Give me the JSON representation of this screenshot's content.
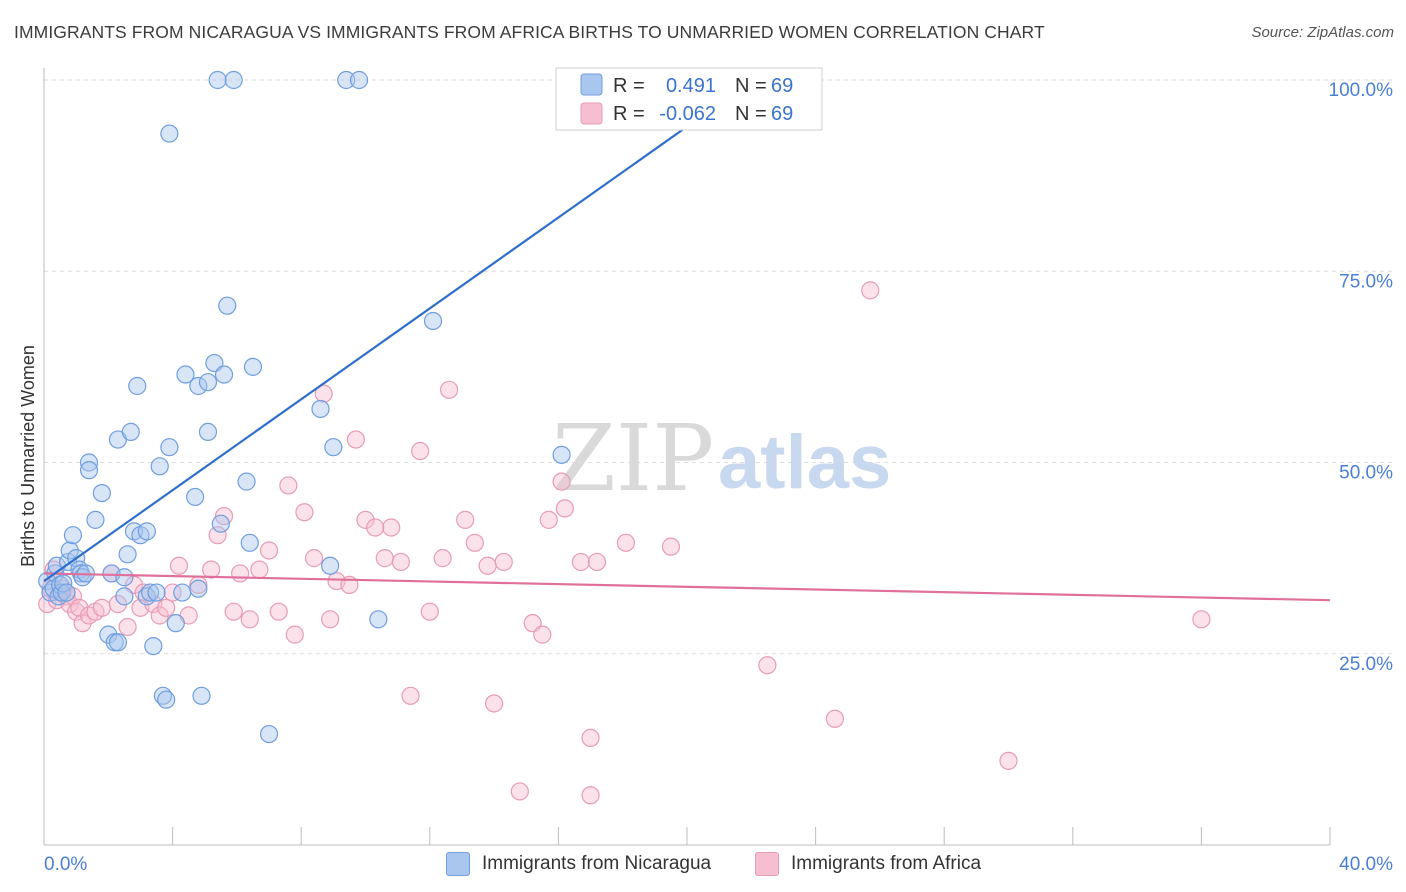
{
  "header": {
    "title": "IMMIGRANTS FROM NICARAGUA VS IMMIGRANTS FROM AFRICA BIRTHS TO UNMARRIED WOMEN CORRELATION CHART",
    "source": "Source: ZipAtlas.com"
  },
  "watermark": {
    "part1": "ZIP",
    "part2": "atlas"
  },
  "legend_box": {
    "rows": [
      {
        "r_label": "R =",
        "r_value": "0.491",
        "n_label": "N =",
        "n_value": "69"
      },
      {
        "r_label": "R =",
        "r_value": "-0.062",
        "n_label": "N =",
        "n_value": "69"
      }
    ]
  },
  "bottom_legend": {
    "item1": "Immigrants from Nicaragua",
    "item2": "Immigrants from Africa"
  },
  "chart_data": {
    "type": "scatter",
    "title": "IMMIGRANTS FROM NICARAGUA VS IMMIGRANTS FROM AFRICA BIRTHS TO UNMARRIED WOMEN CORRELATION CHART",
    "xlabel": "",
    "ylabel": "Births to Unmarried Women",
    "x_unit": "%",
    "xlim": [
      0,
      40
    ],
    "ylim": [
      0,
      100
    ],
    "x_tick_labels": [
      "0.0%",
      "40.0%"
    ],
    "y_ticks": [
      25,
      50,
      75,
      100
    ],
    "y_tick_labels": [
      "25.0%",
      "50.0%",
      "75.0%",
      "100.0%"
    ],
    "grid": true,
    "legend_position": "top-center",
    "colors": {
      "nicaragua_fill": "#a9c6ee",
      "nicaragua_stroke": "#6f9ee0",
      "nicaragua_line": "#2f6fcb",
      "africa_fill": "#f6bfd1",
      "africa_stroke": "#e89bb5",
      "africa_line": "#e0709a",
      "tick_text": "#4a7fd4",
      "grid": "#dcdcdc"
    },
    "series": [
      {
        "name": "Immigrants from Nicaragua",
        "r": 0.491,
        "n": 69,
        "trend": {
          "x": [
            0,
            20.2
          ],
          "y": [
            34.5,
            94.5
          ]
        },
        "points": [
          {
            "x": 0.1,
            "y": 34.5
          },
          {
            "x": 0.2,
            "y": 33.0
          },
          {
            "x": 0.3,
            "y": 33.5
          },
          {
            "x": 0.35,
            "y": 35.5
          },
          {
            "x": 0.4,
            "y": 36.5
          },
          {
            "x": 0.45,
            "y": 32.5
          },
          {
            "x": 0.5,
            "y": 34.0
          },
          {
            "x": 0.55,
            "y": 33.0
          },
          {
            "x": 0.6,
            "y": 34.2
          },
          {
            "x": 0.7,
            "y": 33.0
          },
          {
            "x": 0.75,
            "y": 37.0
          },
          {
            "x": 0.8,
            "y": 38.5
          },
          {
            "x": 0.9,
            "y": 40.5
          },
          {
            "x": 1.0,
            "y": 37.5
          },
          {
            "x": 1.1,
            "y": 36.0
          },
          {
            "x": 1.15,
            "y": 35.5
          },
          {
            "x": 1.2,
            "y": 35.0
          },
          {
            "x": 1.3,
            "y": 35.5
          },
          {
            "x": 1.4,
            "y": 50.0
          },
          {
            "x": 1.4,
            "y": 49.0
          },
          {
            "x": 1.6,
            "y": 42.5
          },
          {
            "x": 1.8,
            "y": 46.0
          },
          {
            "x": 2.0,
            "y": 27.5
          },
          {
            "x": 2.1,
            "y": 35.5
          },
          {
            "x": 2.2,
            "y": 26.5
          },
          {
            "x": 2.3,
            "y": 26.5
          },
          {
            "x": 2.3,
            "y": 53.0
          },
          {
            "x": 2.5,
            "y": 32.5
          },
          {
            "x": 2.5,
            "y": 35.0
          },
          {
            "x": 2.6,
            "y": 38.0
          },
          {
            "x": 2.7,
            "y": 54.0
          },
          {
            "x": 2.8,
            "y": 41.0
          },
          {
            "x": 2.9,
            "y": 60.0
          },
          {
            "x": 3.0,
            "y": 40.5
          },
          {
            "x": 3.2,
            "y": 32.5
          },
          {
            "x": 3.2,
            "y": 41.0
          },
          {
            "x": 3.3,
            "y": 33.0
          },
          {
            "x": 3.4,
            "y": 26.0
          },
          {
            "x": 3.5,
            "y": 33.0
          },
          {
            "x": 3.6,
            "y": 49.5
          },
          {
            "x": 3.7,
            "y": 19.5
          },
          {
            "x": 3.8,
            "y": 19.0
          },
          {
            "x": 3.9,
            "y": 93.0
          },
          {
            "x": 3.9,
            "y": 52.0
          },
          {
            "x": 4.1,
            "y": 29.0
          },
          {
            "x": 4.3,
            "y": 33.0
          },
          {
            "x": 4.4,
            "y": 61.5
          },
          {
            "x": 4.7,
            "y": 45.5
          },
          {
            "x": 4.8,
            "y": 33.5
          },
          {
            "x": 4.8,
            "y": 60.0
          },
          {
            "x": 4.9,
            "y": 19.5
          },
          {
            "x": 5.1,
            "y": 54.0
          },
          {
            "x": 5.1,
            "y": 60.5
          },
          {
            "x": 5.3,
            "y": 63.0
          },
          {
            "x": 5.4,
            "y": 100.0
          },
          {
            "x": 5.5,
            "y": 42.0
          },
          {
            "x": 5.6,
            "y": 61.5
          },
          {
            "x": 5.7,
            "y": 70.5
          },
          {
            "x": 5.9,
            "y": 100.0
          },
          {
            "x": 6.3,
            "y": 47.5
          },
          {
            "x": 6.4,
            "y": 39.5
          },
          {
            "x": 6.5,
            "y": 62.5
          },
          {
            "x": 7.0,
            "y": 14.5
          },
          {
            "x": 8.6,
            "y": 57.0
          },
          {
            "x": 8.9,
            "y": 36.5
          },
          {
            "x": 9.0,
            "y": 52.0
          },
          {
            "x": 9.4,
            "y": 100.0
          },
          {
            "x": 10.4,
            "y": 29.5
          },
          {
            "x": 12.1,
            "y": 68.5
          }
        ],
        "extra_points": [
          {
            "x": 9.8,
            "y": 100.0
          },
          {
            "x": 16.1,
            "y": 51.0
          }
        ]
      },
      {
        "name": "Immigrants from Africa",
        "r": -0.062,
        "n": 69,
        "trend": {
          "x": [
            0,
            40
          ],
          "y": [
            35.5,
            32.0
          ]
        },
        "points": [
          {
            "x": 0.1,
            "y": 31.5
          },
          {
            "x": 0.2,
            "y": 33.5
          },
          {
            "x": 0.3,
            "y": 36.0
          },
          {
            "x": 0.4,
            "y": 32.0
          },
          {
            "x": 0.5,
            "y": 33.0
          },
          {
            "x": 0.6,
            "y": 33.5
          },
          {
            "x": 0.7,
            "y": 32.5
          },
          {
            "x": 0.8,
            "y": 31.5
          },
          {
            "x": 0.9,
            "y": 32.5
          },
          {
            "x": 1.0,
            "y": 30.5
          },
          {
            "x": 1.1,
            "y": 31.0
          },
          {
            "x": 1.2,
            "y": 29.0
          },
          {
            "x": 1.4,
            "y": 30.0
          },
          {
            "x": 1.6,
            "y": 30.5
          },
          {
            "x": 1.8,
            "y": 31.0
          },
          {
            "x": 2.1,
            "y": 35.5
          },
          {
            "x": 2.3,
            "y": 31.5
          },
          {
            "x": 2.6,
            "y": 28.5
          },
          {
            "x": 2.8,
            "y": 34.0
          },
          {
            "x": 3.0,
            "y": 31.0
          },
          {
            "x": 3.1,
            "y": 33.0
          },
          {
            "x": 3.4,
            "y": 31.5
          },
          {
            "x": 3.6,
            "y": 30.0
          },
          {
            "x": 3.8,
            "y": 31.0
          },
          {
            "x": 4.0,
            "y": 33.0
          },
          {
            "x": 4.2,
            "y": 36.5
          },
          {
            "x": 4.5,
            "y": 30.0
          },
          {
            "x": 4.8,
            "y": 34.0
          },
          {
            "x": 5.2,
            "y": 36.0
          },
          {
            "x": 5.4,
            "y": 40.5
          },
          {
            "x": 5.6,
            "y": 43.0
          },
          {
            "x": 5.9,
            "y": 30.5
          },
          {
            "x": 6.1,
            "y": 35.5
          },
          {
            "x": 6.4,
            "y": 29.5
          },
          {
            "x": 6.7,
            "y": 36.0
          },
          {
            "x": 7.0,
            "y": 38.5
          },
          {
            "x": 7.3,
            "y": 30.5
          },
          {
            "x": 7.6,
            "y": 47.0
          },
          {
            "x": 7.8,
            "y": 27.5
          },
          {
            "x": 8.1,
            "y": 43.5
          },
          {
            "x": 8.4,
            "y": 37.5
          },
          {
            "x": 8.9,
            "y": 29.5
          },
          {
            "x": 9.1,
            "y": 34.5
          },
          {
            "x": 9.5,
            "y": 34.0
          },
          {
            "x": 9.7,
            "y": 53.0
          },
          {
            "x": 10.0,
            "y": 42.5
          },
          {
            "x": 10.6,
            "y": 37.5
          },
          {
            "x": 10.8,
            "y": 41.5
          },
          {
            "x": 11.1,
            "y": 37.0
          },
          {
            "x": 11.4,
            "y": 19.5
          },
          {
            "x": 11.7,
            "y": 51.5
          },
          {
            "x": 12.0,
            "y": 30.5
          },
          {
            "x": 12.4,
            "y": 37.5
          },
          {
            "x": 12.6,
            "y": 59.5
          },
          {
            "x": 13.1,
            "y": 42.5
          },
          {
            "x": 13.4,
            "y": 39.5
          },
          {
            "x": 13.8,
            "y": 36.5
          },
          {
            "x": 14.0,
            "y": 18.5
          },
          {
            "x": 14.3,
            "y": 37.0
          },
          {
            "x": 14.8,
            "y": 7.0
          },
          {
            "x": 15.2,
            "y": 29.0
          },
          {
            "x": 15.5,
            "y": 27.5
          },
          {
            "x": 16.7,
            "y": 37.0
          },
          {
            "x": 17.0,
            "y": 14.0
          },
          {
            "x": 18.1,
            "y": 39.5
          },
          {
            "x": 19.5,
            "y": 39.0
          },
          {
            "x": 22.5,
            "y": 23.5
          },
          {
            "x": 25.7,
            "y": 72.5
          },
          {
            "x": 30.0,
            "y": 11.0
          }
        ],
        "extra_points": [
          {
            "x": 8.7,
            "y": 59.0
          },
          {
            "x": 10.3,
            "y": 41.5
          },
          {
            "x": 15.7,
            "y": 42.5
          },
          {
            "x": 16.1,
            "y": 47.5
          },
          {
            "x": 16.2,
            "y": 44.0
          },
          {
            "x": 17.2,
            "y": 37.0
          },
          {
            "x": 24.6,
            "y": 16.5
          },
          {
            "x": 36.0,
            "y": 29.5
          },
          {
            "x": 17.0,
            "y": 6.5
          }
        ]
      }
    ]
  }
}
